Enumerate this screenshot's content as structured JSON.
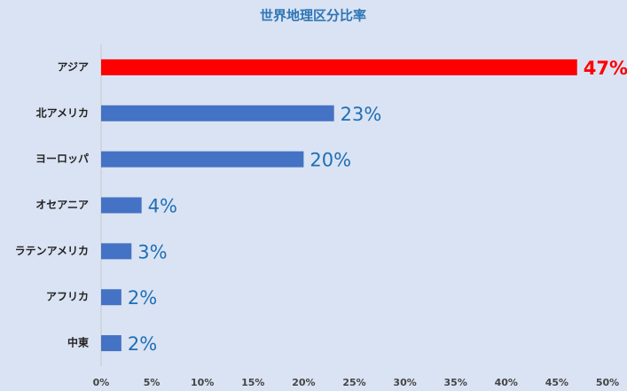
{
  "chart_data": {
    "type": "hbar",
    "title": "世界地理区分比率",
    "categories": [
      "アジア",
      "北アメリカ",
      "ヨーロッパ",
      "オセアニア",
      "ラテンアメリカ",
      "アフリカ",
      "中東"
    ],
    "values": [
      47,
      23,
      20,
      4,
      3,
      2,
      2
    ],
    "value_labels": [
      "47%",
      "23%",
      "20%",
      "4%",
      "3%",
      "2%",
      "2%"
    ],
    "colors": [
      "#ff0000",
      "#4472c4",
      "#4472c4",
      "#4472c4",
      "#4472c4",
      "#4472c4",
      "#4472c4"
    ],
    "value_label_colors": [
      "#ff0000",
      "#1f6fb5",
      "#1f6fb5",
      "#1f6fb5",
      "#1f6fb5",
      "#1f6fb5",
      "#1f6fb5"
    ],
    "xlim": [
      0,
      50
    ],
    "xticks": [
      {
        "value": 0,
        "label": "0%"
      },
      {
        "value": 5,
        "label": "5%"
      },
      {
        "value": 10,
        "label": "10%"
      },
      {
        "value": 15,
        "label": "15%"
      },
      {
        "value": 20,
        "label": "20%"
      },
      {
        "value": 25,
        "label": "25%"
      },
      {
        "value": 30,
        "label": "30%"
      },
      {
        "value": 35,
        "label": "35%"
      },
      {
        "value": 40,
        "label": "40%"
      },
      {
        "value": 45,
        "label": "45%"
      },
      {
        "value": 50,
        "label": "50%"
      }
    ],
    "grid": false
  }
}
